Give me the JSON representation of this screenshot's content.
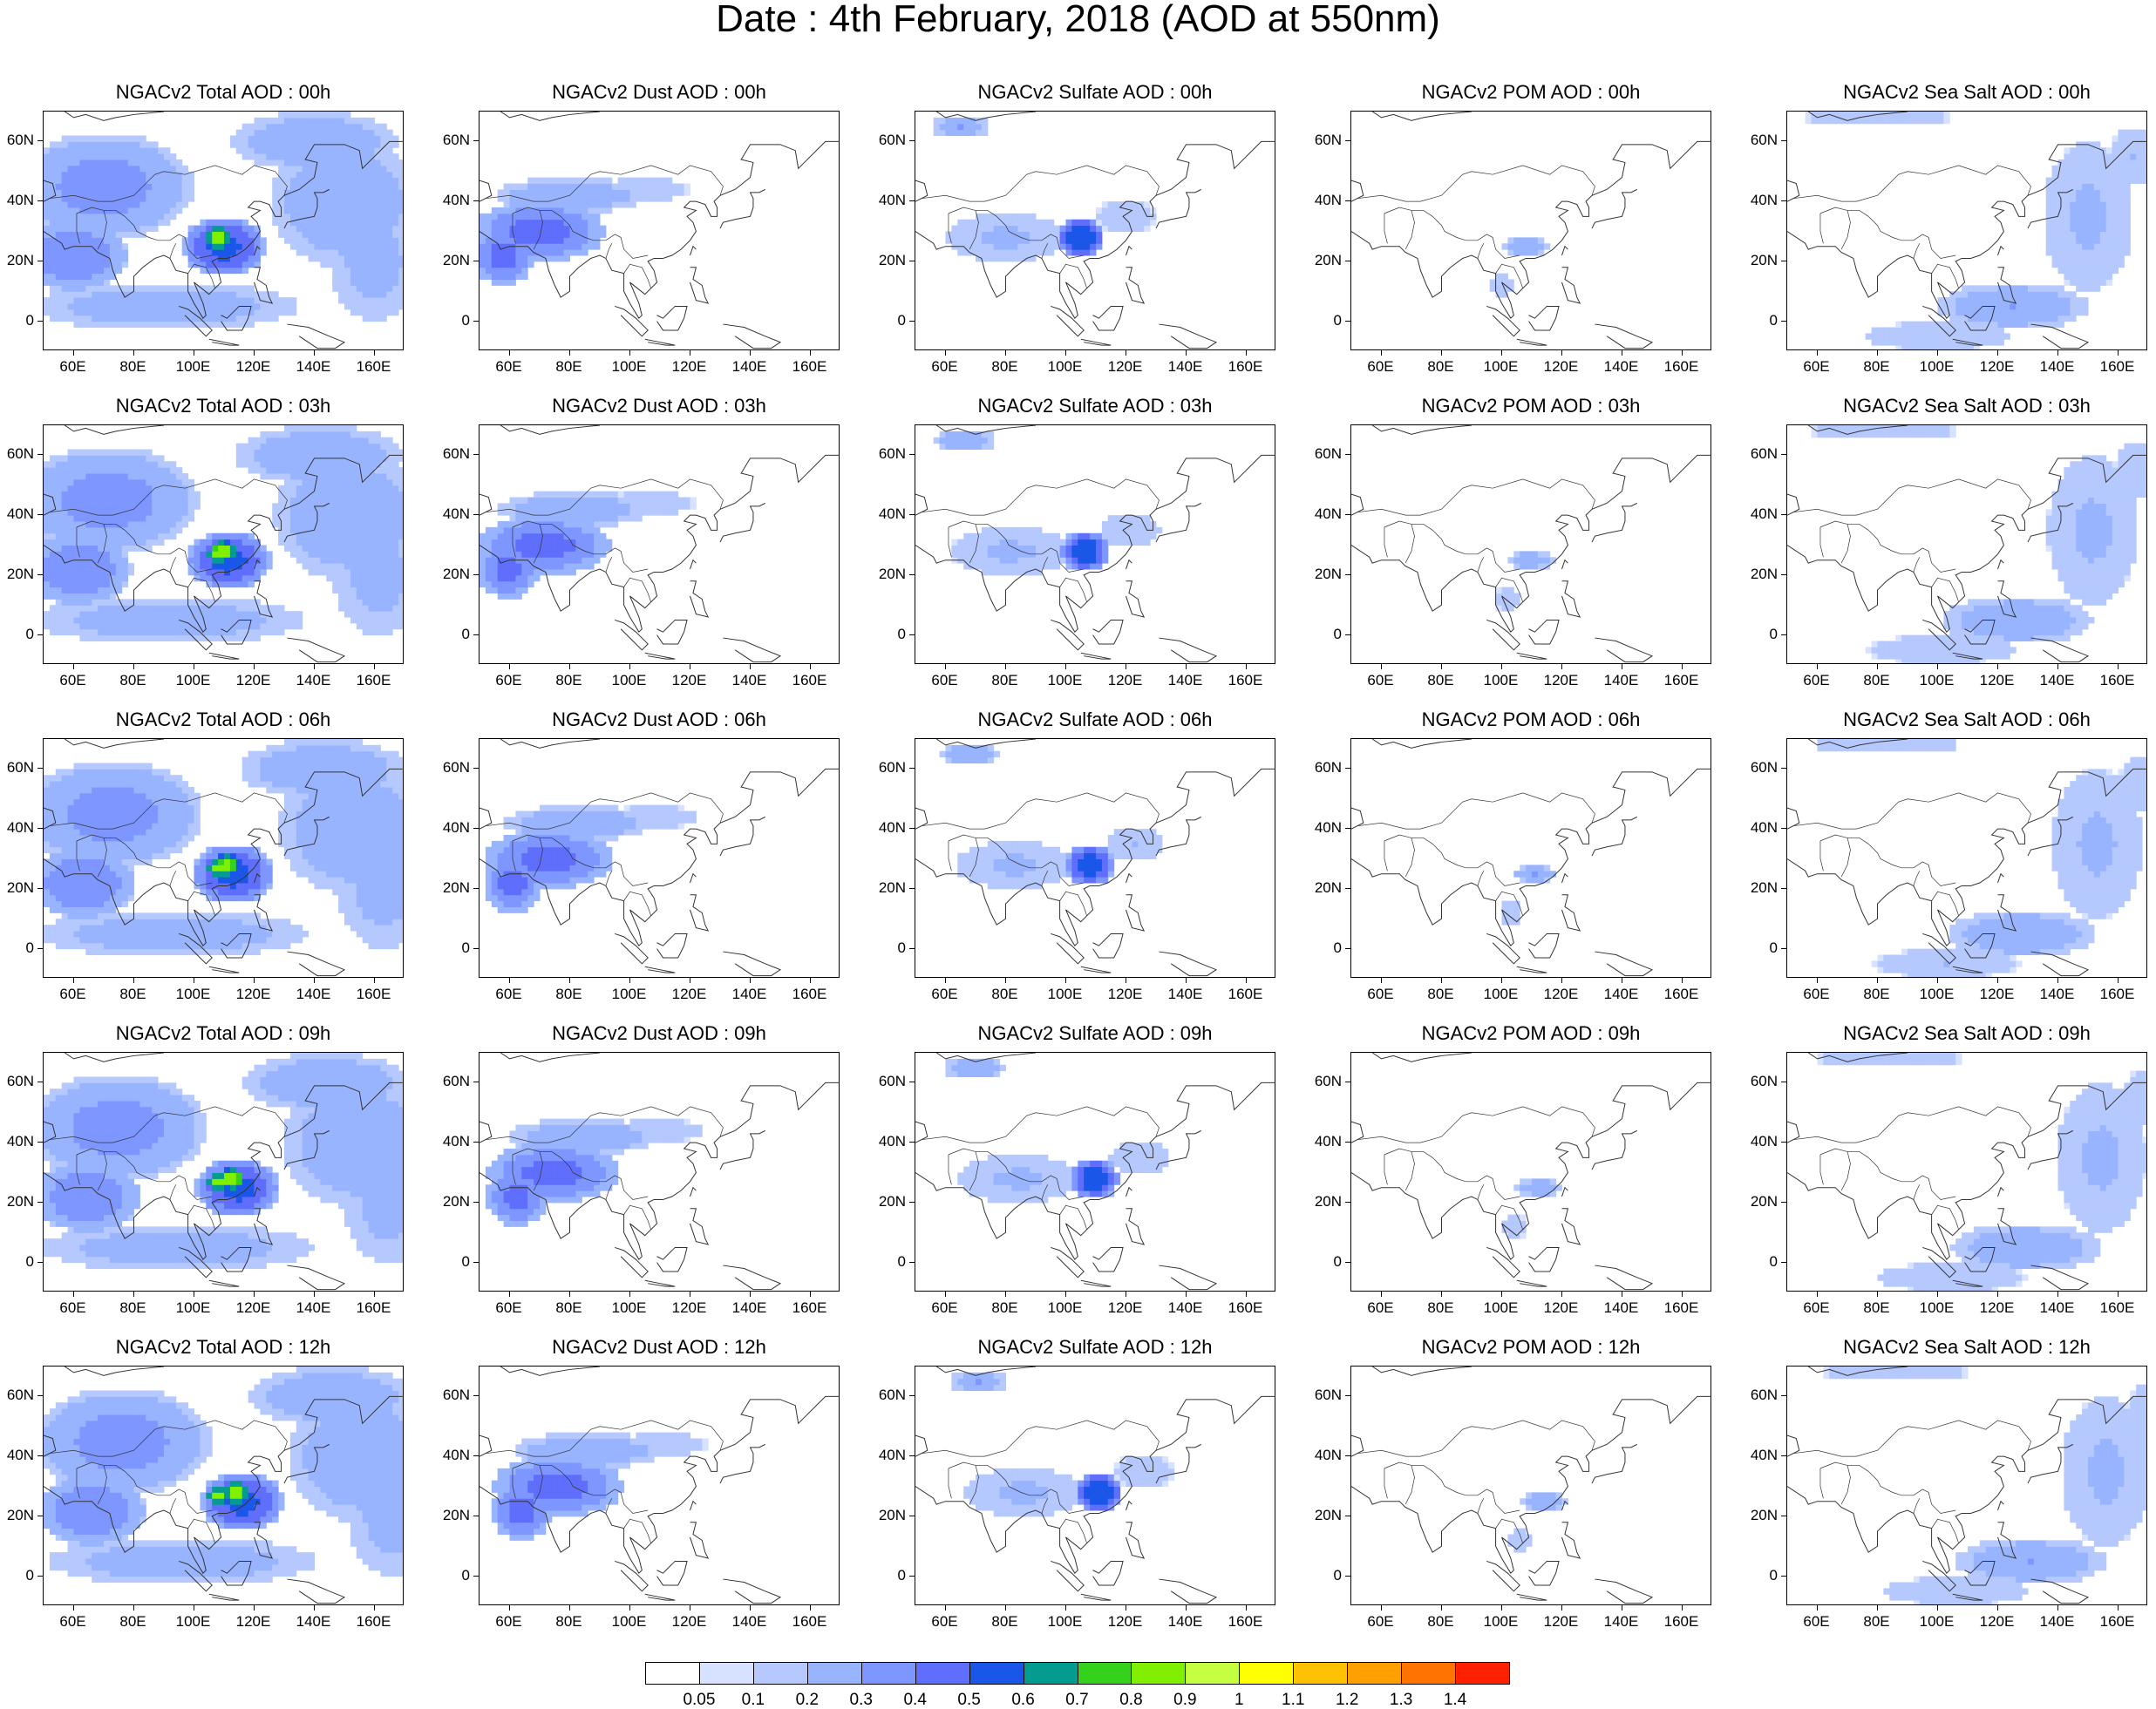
{
  "title": "Date : 4th February, 2018 (AOD at 550nm)",
  "map_axes": {
    "lon_ticks": [
      "60E",
      "80E",
      "100E",
      "120E",
      "140E",
      "160E"
    ],
    "lat_ticks": [
      "60N",
      "40N",
      "20N",
      "0"
    ],
    "lon_range": [
      50,
      170
    ],
    "lat_range": [
      -10,
      70
    ]
  },
  "panels": [
    [
      "NGACv2 Total AOD : 00h",
      "NGACv2 Dust AOD : 00h",
      "NGACv2 Sulfate AOD : 00h",
      "NGACv2 POM AOD : 00h",
      "NGACv2 Sea Salt AOD : 00h"
    ],
    [
      "NGACv2 Total AOD : 03h",
      "NGACv2 Dust AOD : 03h",
      "NGACv2 Sulfate AOD : 03h",
      "NGACv2 POM AOD : 03h",
      "NGACv2 Sea Salt AOD : 03h"
    ],
    [
      "NGACv2 Total AOD : 06h",
      "NGACv2 Dust AOD : 06h",
      "NGACv2 Sulfate AOD : 06h",
      "NGACv2 POM AOD : 06h",
      "NGACv2 Sea Salt AOD : 06h"
    ],
    [
      "NGACv2 Total AOD : 09h",
      "NGACv2 Dust AOD : 09h",
      "NGACv2 Sulfate AOD : 09h",
      "NGACv2 POM AOD : 09h",
      "NGACv2 Sea Salt  AOD : 09h"
    ],
    [
      "NGACv2 Total AOD  : 12h",
      "NGACv2 Dust AOD : 12h",
      "NGACv2 Sulfate AOD : 12h",
      "NGACv2 POM  AOD : 12h",
      "NGACv2 Sea Salt  AOD : 12h"
    ]
  ],
  "colorbar": {
    "labels": [
      "0.05",
      "0.1",
      "0.2",
      "0.3",
      "0.4",
      "0.5",
      "0.6",
      "0.7",
      "0.8",
      "0.9",
      "1",
      "1.1",
      "1.2",
      "1.3",
      "1.4"
    ],
    "colors": [
      "#ffffff",
      "#d6e2ff",
      "#b5c9ff",
      "#99b4ff",
      "#7e96ff",
      "#5f6efb",
      "#1a56e8",
      "#049c8f",
      "#36d11d",
      "#80f000",
      "#c4ff40",
      "#ffff00",
      "#ffc200",
      "#ffa000",
      "#ff7400",
      "#ff2000"
    ]
  }
}
